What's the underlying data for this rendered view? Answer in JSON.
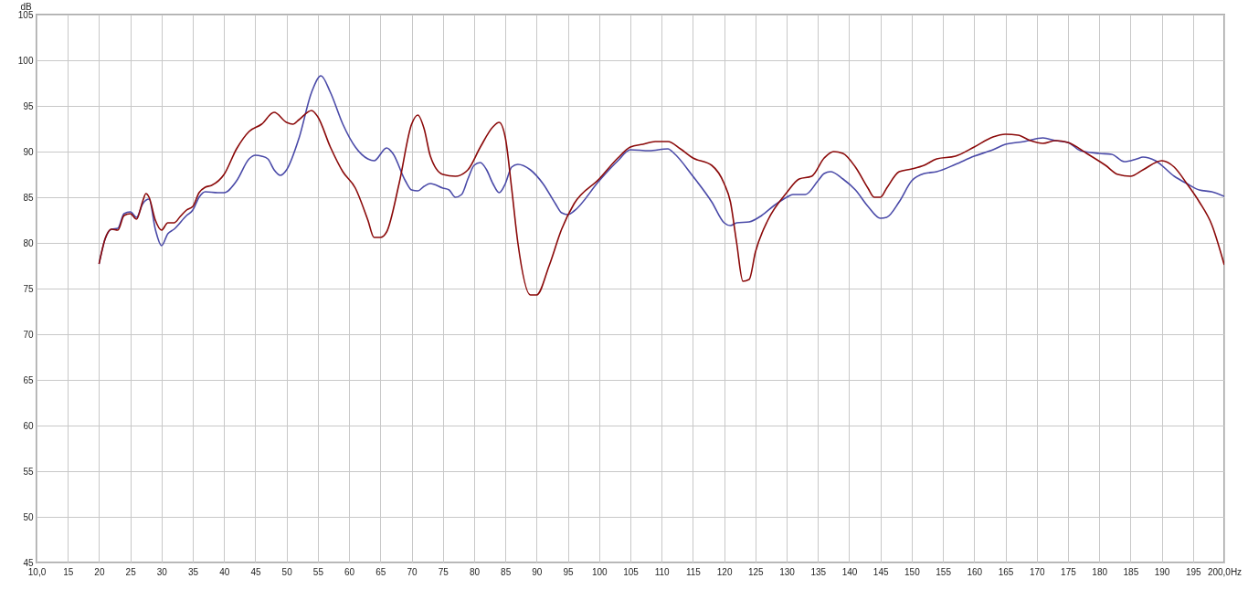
{
  "chart_data": {
    "type": "line",
    "ylabel": "dB",
    "xlim": [
      10,
      200
    ],
    "ylim": [
      45,
      105
    ],
    "xticks": [
      {
        "value": 10,
        "label": "10,0"
      },
      15,
      20,
      25,
      30,
      35,
      40,
      45,
      50,
      55,
      60,
      65,
      70,
      75,
      80,
      85,
      90,
      95,
      100,
      105,
      110,
      115,
      120,
      125,
      130,
      135,
      140,
      145,
      150,
      155,
      160,
      165,
      170,
      175,
      180,
      185,
      190,
      195,
      {
        "value": 200,
        "label": "200,0Hz"
      }
    ],
    "yticks": [
      45,
      50,
      55,
      60,
      65,
      70,
      75,
      80,
      85,
      90,
      95,
      100,
      105
    ],
    "grid": true,
    "marker": "none",
    "line_style": "solid",
    "series": [
      {
        "color": "#4a4aa8",
        "x": [
          20,
          21,
          22,
          23,
          24,
          25,
          26,
          27,
          28,
          29,
          30,
          31,
          32,
          34,
          35,
          36,
          37,
          39,
          40,
          42,
          44,
          45,
          46,
          47,
          48,
          49,
          50,
          52,
          54,
          55.5,
          57,
          59,
          61,
          63,
          64,
          66,
          67,
          69,
          70,
          71,
          72,
          73,
          75,
          76,
          77,
          78,
          79,
          80,
          81,
          82,
          83,
          84,
          85,
          86,
          87,
          89,
          91,
          93,
          94,
          95,
          96,
          100,
          103,
          105,
          108,
          111,
          112,
          115,
          118,
          120,
          121,
          122,
          124,
          126,
          128,
          130,
          131,
          133,
          135,
          136,
          137,
          139,
          141,
          143,
          145,
          146,
          148,
          150,
          152,
          154,
          157,
          160,
          163,
          165,
          168,
          171,
          173,
          175,
          177,
          180,
          182,
          184,
          186,
          187,
          189,
          192,
          194,
          196,
          198,
          200
        ],
        "values": [
          77.7,
          80.5,
          81.5,
          81.6,
          83.2,
          83.4,
          82.8,
          84.3,
          84.8,
          81.5,
          79.7,
          81.0,
          81.5,
          83.0,
          83.6,
          85.0,
          85.6,
          85.5,
          85.5,
          86.8,
          89.2,
          89.6,
          89.5,
          89.2,
          88.0,
          87.4,
          88.0,
          91.5,
          96.5,
          98.3,
          96.5,
          93.0,
          90.5,
          89.2,
          89.0,
          90.4,
          89.8,
          86.8,
          85.8,
          85.7,
          86.2,
          86.5,
          86.0,
          85.8,
          85.0,
          85.3,
          87.0,
          88.5,
          88.8,
          88.0,
          86.5,
          85.5,
          86.5,
          88.3,
          88.6,
          88.0,
          86.5,
          84.3,
          83.3,
          83.1,
          83.5,
          86.8,
          89.0,
          90.2,
          90.1,
          90.3,
          89.8,
          87.3,
          84.5,
          82.2,
          81.9,
          82.2,
          82.3,
          83.0,
          84.1,
          85.0,
          85.3,
          85.3,
          86.8,
          87.6,
          87.8,
          87.0,
          85.8,
          84.0,
          82.7,
          82.8,
          84.5,
          86.8,
          87.6,
          87.8,
          88.6,
          89.5,
          90.2,
          90.8,
          91.1,
          91.5,
          91.2,
          91.0,
          90.1,
          89.8,
          89.7,
          88.9,
          89.2,
          89.4,
          89.0,
          87.3,
          86.5,
          85.8,
          85.6,
          85.1
        ]
      },
      {
        "color": "#8b0a0a",
        "x": [
          20,
          21,
          22,
          23,
          24,
          25,
          26,
          27,
          27.5,
          28,
          29,
          30,
          31,
          32,
          33,
          34,
          35,
          36,
          37,
          38,
          40,
          42,
          44,
          46,
          48,
          50,
          51,
          52,
          54,
          55,
          57,
          59,
          61,
          63,
          64,
          65,
          66,
          68,
          70,
          71,
          72,
          73,
          75,
          77,
          79,
          81,
          83,
          84,
          85,
          86,
          87,
          89,
          90,
          92,
          94,
          96,
          100,
          103,
          105,
          107,
          109,
          111,
          113,
          115,
          118,
          120,
          121,
          122,
          123,
          124,
          125,
          127,
          130,
          132,
          134,
          136,
          137.5,
          139,
          141,
          143,
          144,
          145,
          146,
          148,
          150,
          152,
          154,
          157,
          160,
          163,
          165,
          167,
          169,
          171,
          173,
          175,
          178,
          181,
          183,
          185,
          187,
          190,
          192,
          194,
          196,
          198,
          200
        ],
        "values": [
          77.7,
          80.5,
          81.5,
          81.4,
          83.0,
          83.2,
          82.6,
          84.6,
          85.4,
          85.0,
          82.5,
          81.4,
          82.2,
          82.2,
          82.9,
          83.6,
          84.0,
          85.5,
          86.1,
          86.3,
          87.5,
          90.3,
          92.2,
          93.0,
          94.3,
          93.2,
          93.0,
          93.5,
          94.5,
          93.8,
          90.5,
          87.8,
          86.0,
          82.5,
          80.6,
          80.6,
          81.2,
          86.5,
          93.0,
          94.0,
          92.5,
          89.5,
          87.5,
          87.3,
          88.0,
          90.5,
          92.7,
          93.2,
          91.5,
          86.0,
          80.0,
          74.3,
          74.3,
          77.5,
          81.5,
          84.3,
          87.0,
          89.3,
          90.5,
          90.8,
          91.1,
          91.1,
          90.3,
          89.3,
          88.5,
          86.5,
          84.5,
          80.0,
          75.8,
          76.0,
          79.0,
          82.5,
          85.5,
          87.0,
          87.3,
          89.3,
          90.0,
          89.8,
          88.3,
          86.0,
          85.0,
          85.0,
          86.0,
          87.8,
          88.1,
          88.5,
          89.2,
          89.5,
          90.5,
          91.6,
          91.9,
          91.8,
          91.2,
          90.9,
          91.2,
          91.0,
          89.8,
          88.5,
          87.5,
          87.3,
          88.0,
          89.0,
          88.3,
          86.5,
          84.5,
          82.0,
          77.6
        ]
      }
    ]
  }
}
